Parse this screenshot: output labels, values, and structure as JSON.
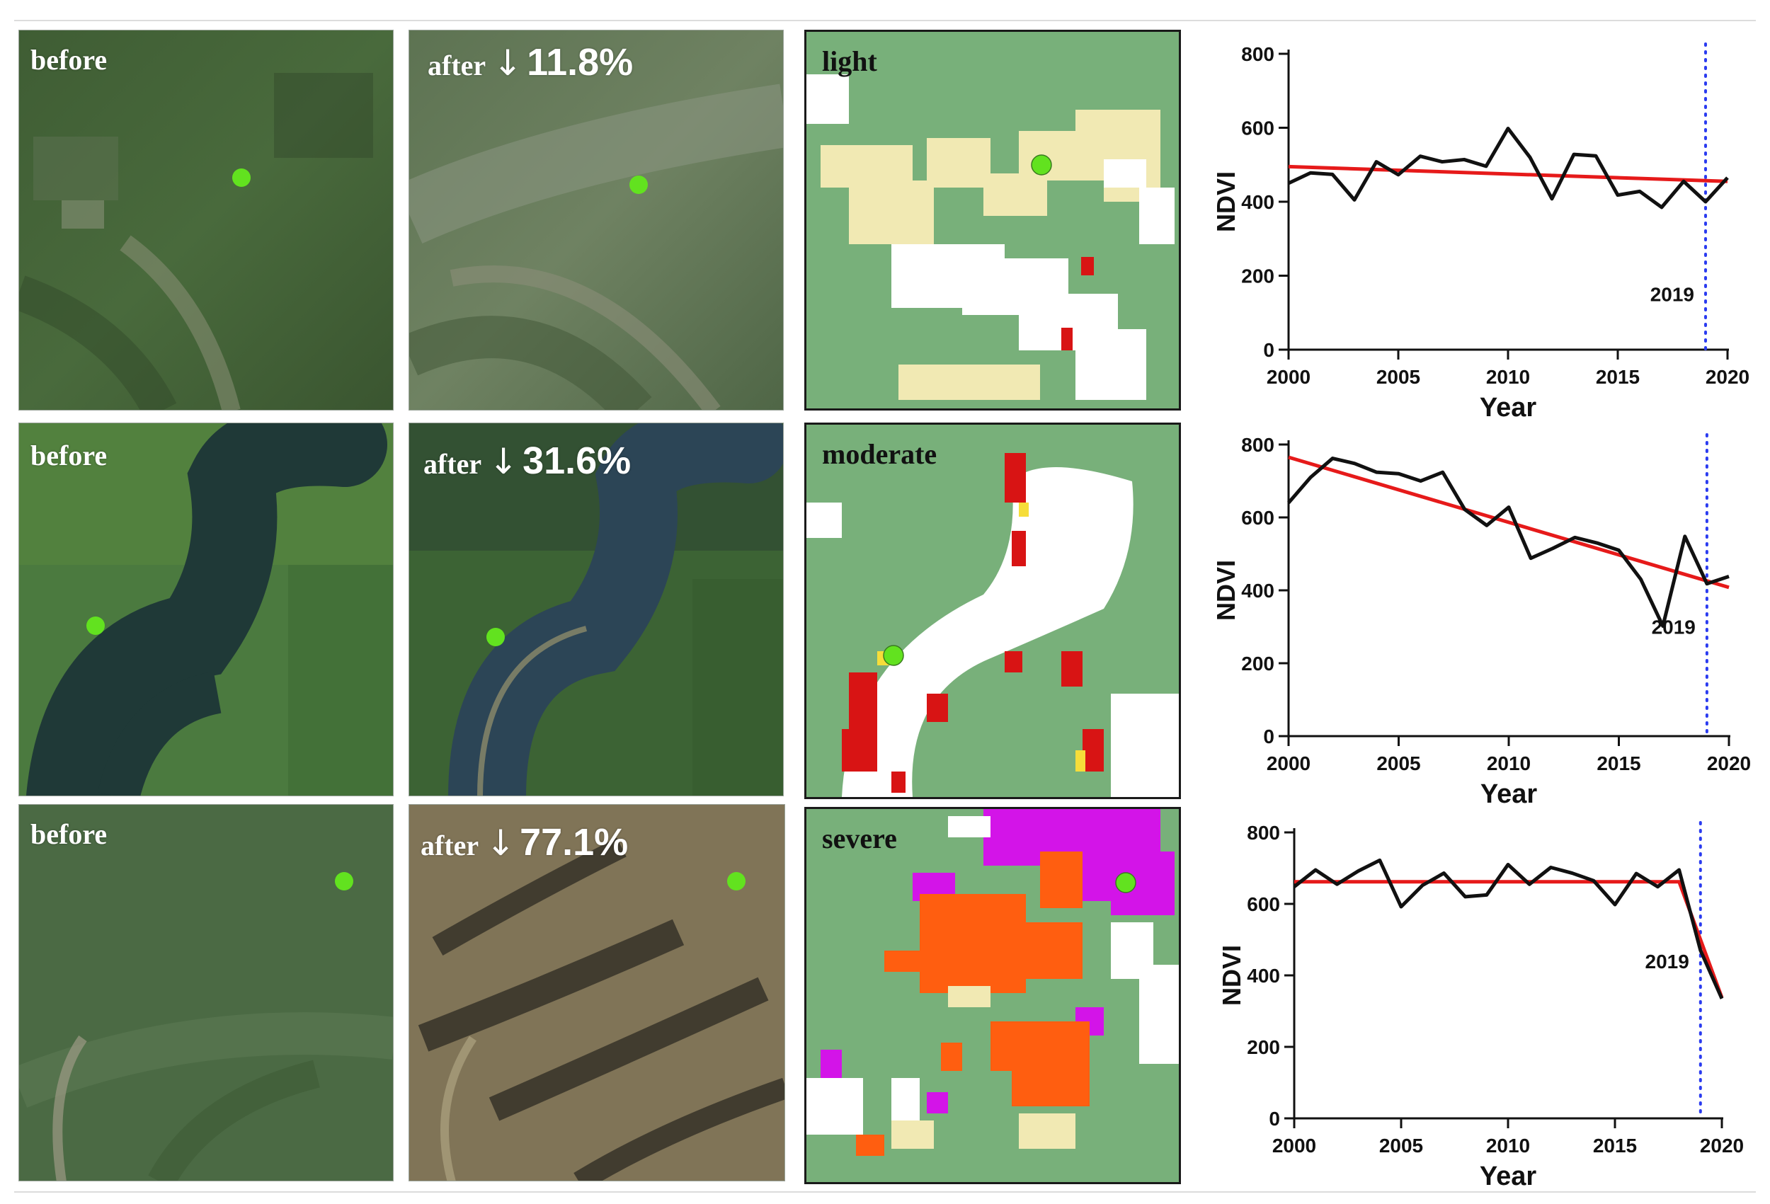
{
  "rows": [
    {
      "before_label": "before",
      "after_label": "after",
      "after_arrow": "↓",
      "after_change": "11.8%",
      "severity_label": "light"
    },
    {
      "before_label": "before",
      "after_label": "after",
      "after_arrow": "↓",
      "after_change": "31.6%",
      "severity_label": "moderate"
    },
    {
      "before_label": "before",
      "after_label": "after",
      "after_arrow": "↓",
      "after_change": "77.1%",
      "severity_label": "severe"
    }
  ],
  "colors": {
    "vegetation_green": "#78b07a",
    "marker_green": "#62e21f",
    "light_loss": "#f1e9b3",
    "moderate_loss": "#d81414",
    "severe_orange": "#ff5e10",
    "severe_magenta": "#d314e8",
    "trend_line": "#e61a1a",
    "event_line": "#2b3cf0"
  },
  "chart_data": [
    {
      "type": "line",
      "xlabel": "Year",
      "ylabel": "NDVI",
      "xlim": [
        2000,
        2020
      ],
      "ylim": [
        0,
        800
      ],
      "xticks": [
        2000,
        2005,
        2010,
        2015,
        2020
      ],
      "yticks": [
        0,
        200,
        400,
        600,
        800
      ],
      "series": [
        {
          "x": [
            2000,
            2001,
            2002,
            2003,
            2004,
            2005,
            2006,
            2007,
            2008,
            2009,
            2010,
            2011,
            2012,
            2013,
            2014,
            2015,
            2016,
            2017,
            2018,
            2019,
            2020
          ],
          "y": [
            450,
            478,
            474,
            405,
            508,
            473,
            523,
            508,
            514,
            496,
            598,
            520,
            408,
            528,
            524,
            418,
            428,
            385,
            455,
            400,
            465
          ],
          "color": "#111111"
        }
      ],
      "trend": {
        "x": [
          2000,
          2020
        ],
        "y": [
          495,
          455
        ],
        "color": "#e61a1a"
      },
      "event": {
        "x": 2019,
        "label": "2019",
        "color": "#2b3cf0"
      }
    },
    {
      "type": "line",
      "xlabel": "Year",
      "ylabel": "NDVI",
      "xlim": [
        2000,
        2020
      ],
      "ylim": [
        0,
        800
      ],
      "xticks": [
        2000,
        2005,
        2010,
        2015,
        2020
      ],
      "yticks": [
        0,
        200,
        400,
        600,
        800
      ],
      "series": [
        {
          "x": [
            2000,
            2001,
            2002,
            2003,
            2004,
            2005,
            2006,
            2007,
            2008,
            2009,
            2010,
            2011,
            2012,
            2013,
            2014,
            2015,
            2016,
            2017,
            2018,
            2019,
            2020
          ],
          "y": [
            640,
            710,
            762,
            748,
            724,
            720,
            700,
            724,
            622,
            578,
            628,
            488,
            515,
            545,
            530,
            510,
            430,
            302,
            548,
            418,
            438
          ],
          "color": "#111111"
        }
      ],
      "trend": {
        "x": [
          2000,
          2020
        ],
        "y": [
          765,
          408
        ],
        "color": "#e61a1a"
      },
      "event": {
        "x": 2019,
        "label": "2019",
        "color": "#2b3cf0"
      }
    },
    {
      "type": "line",
      "xlabel": "Year",
      "ylabel": "NDVI",
      "xlim": [
        2000,
        2020
      ],
      "ylim": [
        0,
        800
      ],
      "xticks": [
        2000,
        2005,
        2010,
        2015,
        2020
      ],
      "yticks": [
        0,
        200,
        400,
        600,
        800
      ],
      "series": [
        {
          "x": [
            2000,
            2001,
            2002,
            2003,
            2004,
            2005,
            2006,
            2007,
            2008,
            2009,
            2010,
            2011,
            2012,
            2013,
            2014,
            2015,
            2016,
            2017,
            2018,
            2019,
            2020
          ],
          "y": [
            648,
            695,
            655,
            692,
            722,
            592,
            652,
            686,
            620,
            625,
            710,
            655,
            702,
            686,
            665,
            598,
            685,
            648,
            695,
            470,
            335
          ],
          "color": "#111111"
        }
      ],
      "trend": {
        "x": [
          2000,
          2018
        ],
        "y": [
          662,
          662
        ],
        "extend_to": {
          "x": 2020,
          "y": 338
        },
        "color": "#e61a1a"
      },
      "event": {
        "x": 2019,
        "label": "2019",
        "color": "#2b3cf0"
      }
    }
  ]
}
